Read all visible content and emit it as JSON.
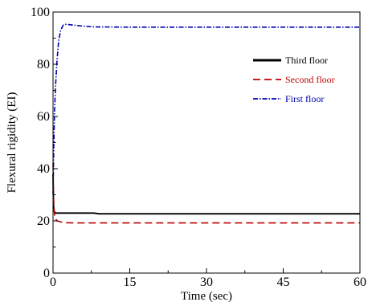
{
  "chart_data": {
    "type": "line",
    "xlabel": "Time (sec)",
    "ylabel": "Flexural rigidity (EI)",
    "xlim": [
      0,
      60
    ],
    "ylim": [
      0,
      100
    ],
    "xticks": [
      0,
      15,
      30,
      45,
      60
    ],
    "yticks": [
      0,
      20,
      40,
      60,
      80,
      100
    ],
    "grid": false,
    "legend_position": "top-right",
    "series": [
      {
        "name": "Third floor",
        "color": "#000000",
        "style": "solid",
        "x": [
          0,
          0.1,
          0.2,
          0.35,
          0.5,
          0.8,
          1.2,
          2,
          4,
          8,
          9,
          15,
          30,
          45,
          60
        ],
        "y": [
          38,
          26,
          24,
          23.2,
          23,
          23,
          23,
          23,
          23,
          23,
          22.7,
          22.7,
          22.7,
          22.7,
          22.7
        ]
      },
      {
        "name": "Second floor",
        "color": "#c00000",
        "style": "dashed",
        "x": [
          0,
          0.1,
          0.2,
          0.4,
          0.8,
          1.5,
          2.5,
          4,
          6,
          10,
          15,
          30,
          45,
          60
        ],
        "y": [
          42,
          30,
          24,
          21,
          20,
          19.6,
          19.3,
          19.2,
          19.2,
          19.2,
          19.2,
          19.2,
          19.2,
          19.2
        ]
      },
      {
        "name": "First floor",
        "color": "#0000b0",
        "style": "dashdot",
        "x": [
          0,
          0.15,
          0.3,
          0.5,
          0.8,
          1.1,
          1.5,
          2,
          2.5,
          3,
          4,
          6,
          8,
          15,
          30,
          45,
          60
        ],
        "y": [
          30,
          50,
          62,
          72,
          82,
          89,
          93,
          95,
          95.3,
          95.2,
          95,
          94.6,
          94.3,
          94.2,
          94.2,
          94.2,
          94.2
        ]
      }
    ]
  }
}
